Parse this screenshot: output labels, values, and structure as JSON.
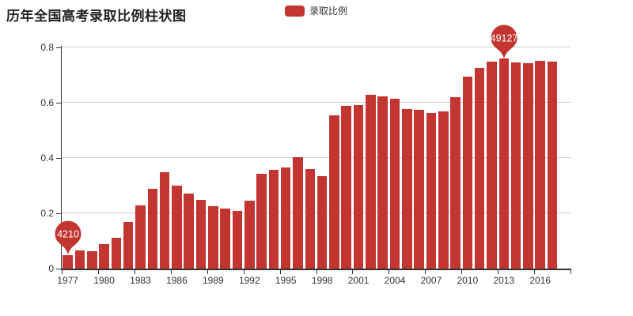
{
  "title": "历年全国高考录取比例柱状图",
  "legend": {
    "label": "录取比例",
    "color": "#c23531"
  },
  "colors": {
    "bar": "#c23531",
    "axis": "#333333",
    "grid": "#cccccc",
    "text": "#333333",
    "pin_fill": "#c23531",
    "pin_text": "#ffffff"
  },
  "chart_data": {
    "type": "bar",
    "title": "历年全国高考录取比例柱状图",
    "series_name": "录取比例",
    "x": [
      1977,
      1978,
      1979,
      1980,
      1981,
      1982,
      1983,
      1984,
      1985,
      1986,
      1987,
      1988,
      1989,
      1990,
      1991,
      1992,
      1993,
      1994,
      1995,
      1996,
      1997,
      1998,
      1999,
      2000,
      2001,
      2002,
      2003,
      2004,
      2005,
      2006,
      2007,
      2008,
      2009,
      2010,
      2011,
      2012,
      2013,
      2014,
      2015,
      2016,
      2017
    ],
    "values": [
      0.05,
      0.066,
      0.064,
      0.089,
      0.111,
      0.17,
      0.23,
      0.29,
      0.35,
      0.3,
      0.272,
      0.248,
      0.227,
      0.217,
      0.21,
      0.247,
      0.342,
      0.358,
      0.366,
      0.402,
      0.36,
      0.335,
      0.555,
      0.59,
      0.592,
      0.628,
      0.623,
      0.613,
      0.577,
      0.574,
      0.562,
      0.57,
      0.62,
      0.693,
      0.725,
      0.75,
      0.76,
      0.745,
      0.742,
      0.752,
      0.748
    ],
    "ylim": [
      0,
      0.8
    ],
    "y_tick_labels": [
      "0",
      "0.2",
      "0.4",
      "0.6",
      "0.8"
    ],
    "x_tick_labels": [
      "1977",
      "1980",
      "1983",
      "1986",
      "1989",
      "1992",
      "1995",
      "1998",
      "2001",
      "2004",
      "2007",
      "2010",
      "2013",
      "2016"
    ],
    "x_label_interval": 3,
    "grid": true,
    "legend_position": "top-center",
    "markers": {
      "min": {
        "year": 1977,
        "label": "4210"
      },
      "max": {
        "year": 2013,
        "label": "49127"
      }
    }
  }
}
